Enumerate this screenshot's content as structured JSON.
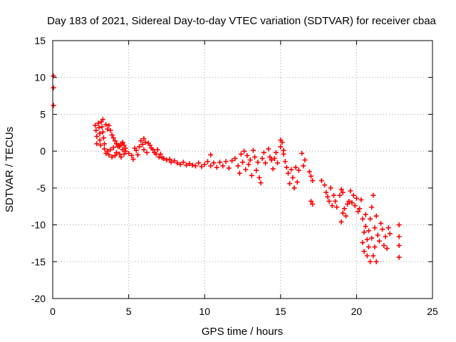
{
  "chart_data": {
    "type": "scatter",
    "title": "Day 183 of 2021, Sidereal Day-to-day VTEC variation (SDTVAR) for receiver cbaa",
    "xlabel": "GPS time / hours",
    "ylabel": "SDTVAR / TECUs",
    "xlim": [
      0,
      25
    ],
    "ylim": [
      -20,
      15
    ],
    "xticks": [
      0,
      5,
      10,
      15,
      20,
      25
    ],
    "yticks": [
      15,
      10,
      5,
      0,
      -5,
      -10,
      -15,
      -20
    ],
    "grid": true,
    "marker": "+",
    "color": "#ff0000",
    "series": [
      {
        "name": "SDTVAR",
        "points": [
          [
            0.05,
            10.2
          ],
          [
            0.05,
            8.6
          ],
          [
            0.05,
            6.2
          ],
          [
            2.8,
            3.5
          ],
          [
            2.85,
            2.8
          ],
          [
            2.9,
            2.0
          ],
          [
            2.9,
            1.0
          ],
          [
            3.0,
            3.8
          ],
          [
            3.05,
            3.2
          ],
          [
            3.1,
            2.4
          ],
          [
            3.1,
            1.5
          ],
          [
            3.15,
            0.8
          ],
          [
            3.2,
            4.0
          ],
          [
            3.25,
            3.3
          ],
          [
            3.3,
            4.3
          ],
          [
            3.3,
            2.6
          ],
          [
            3.35,
            1.8
          ],
          [
            3.4,
            1.0
          ],
          [
            3.4,
            0.3
          ],
          [
            3.5,
            3.6
          ],
          [
            3.5,
            -0.3
          ],
          [
            3.6,
            3.0
          ],
          [
            3.6,
            0.0
          ],
          [
            3.7,
            3.5
          ],
          [
            3.7,
            -0.5
          ],
          [
            3.8,
            2.8
          ],
          [
            3.8,
            0.2
          ],
          [
            3.9,
            2.2
          ],
          [
            3.9,
            -0.8
          ],
          [
            4.0,
            1.8
          ],
          [
            4.0,
            0.5
          ],
          [
            4.1,
            1.4
          ],
          [
            4.1,
            -0.6
          ],
          [
            4.2,
            1.0
          ],
          [
            4.2,
            -0.2
          ],
          [
            4.3,
            0.8
          ],
          [
            4.3,
            0.6
          ],
          [
            4.4,
            0.6
          ],
          [
            4.4,
            -0.4
          ],
          [
            4.5,
            1.0
          ],
          [
            4.5,
            -0.8
          ],
          [
            4.6,
            1.2
          ],
          [
            4.6,
            0.2
          ],
          [
            4.7,
            0.8
          ],
          [
            4.7,
            -0.4
          ],
          [
            4.8,
            0.4
          ],
          [
            4.8,
            0.0
          ],
          [
            5.0,
            -0.3
          ],
          [
            5.2,
            -0.6
          ],
          [
            5.3,
            -1.1
          ],
          [
            5.4,
            0.4
          ],
          [
            5.5,
            0.1
          ],
          [
            5.6,
            -0.5
          ],
          [
            5.7,
            0.6
          ],
          [
            5.8,
            1.4
          ],
          [
            5.9,
            0.9
          ],
          [
            6.0,
            1.7
          ],
          [
            6.0,
            0.2
          ],
          [
            6.1,
            1.2
          ],
          [
            6.2,
            -0.2
          ],
          [
            6.3,
            1.1
          ],
          [
            6.4,
            0.8
          ],
          [
            6.5,
            0.4
          ],
          [
            6.6,
            0.2
          ],
          [
            6.7,
            -0.2
          ],
          [
            6.8,
            -0.4
          ],
          [
            6.9,
            0.2
          ],
          [
            7.0,
            -0.8
          ],
          [
            7.1,
            -0.4
          ],
          [
            7.2,
            -0.9
          ],
          [
            7.3,
            -1.0
          ],
          [
            7.5,
            -1.2
          ],
          [
            7.7,
            -1.1
          ],
          [
            7.8,
            -1.5
          ],
          [
            8.0,
            -1.3
          ],
          [
            8.2,
            -1.6
          ],
          [
            8.4,
            -1.8
          ],
          [
            8.6,
            -1.5
          ],
          [
            8.8,
            -1.9
          ],
          [
            9.0,
            -1.7
          ],
          [
            9.2,
            -1.9
          ],
          [
            9.4,
            -2.0
          ],
          [
            9.6,
            -1.6
          ],
          [
            9.8,
            -2.1
          ],
          [
            10.0,
            -1.8
          ],
          [
            10.2,
            -1.4
          ],
          [
            10.4,
            -0.5
          ],
          [
            10.4,
            -2.0
          ],
          [
            10.6,
            -1.6
          ],
          [
            10.8,
            -2.2
          ],
          [
            11.0,
            -1.5
          ],
          [
            11.2,
            -2.0
          ],
          [
            11.4,
            -1.4
          ],
          [
            11.6,
            -2.3
          ],
          [
            11.8,
            -1.3
          ],
          [
            12.0,
            -1.0
          ],
          [
            12.2,
            -2.0
          ],
          [
            12.3,
            -3.0
          ],
          [
            12.4,
            -0.4
          ],
          [
            12.5,
            -1.5
          ],
          [
            12.6,
            0.0
          ],
          [
            12.7,
            -2.5
          ],
          [
            12.8,
            -0.6
          ],
          [
            12.9,
            -1.8
          ],
          [
            13.0,
            -1.2
          ],
          [
            13.1,
            -3.3
          ],
          [
            13.2,
            0.1
          ],
          [
            13.3,
            -0.8
          ],
          [
            13.4,
            -2.6
          ],
          [
            13.5,
            -1.5
          ],
          [
            13.6,
            -3.6
          ],
          [
            13.7,
            -4.3
          ],
          [
            13.8,
            -1.0
          ],
          [
            13.9,
            -0.2
          ],
          [
            14.0,
            -1.6
          ],
          [
            14.2,
            0.3
          ],
          [
            14.3,
            -0.8
          ],
          [
            14.4,
            -1.2
          ],
          [
            14.5,
            -2.4
          ],
          [
            14.6,
            -1.0
          ],
          [
            14.7,
            -0.2
          ],
          [
            14.8,
            -1.6
          ],
          [
            15.0,
            1.5
          ],
          [
            15.0,
            0.6
          ],
          [
            15.1,
            1.2
          ],
          [
            15.2,
            0.1
          ],
          [
            15.2,
            -0.4
          ],
          [
            15.3,
            -1.4
          ],
          [
            15.4,
            -2.2
          ],
          [
            15.5,
            -3.0
          ],
          [
            15.6,
            -4.4
          ],
          [
            15.7,
            -2.5
          ],
          [
            15.8,
            -3.6
          ],
          [
            15.9,
            -5.0
          ],
          [
            16.0,
            -2.2
          ],
          [
            16.1,
            -4.2
          ],
          [
            16.2,
            -2.6
          ],
          [
            16.4,
            -0.3
          ],
          [
            16.5,
            -2.0
          ],
          [
            16.6,
            -1.2
          ],
          [
            16.9,
            -2.8
          ],
          [
            17.0,
            -3.4
          ],
          [
            17.1,
            -4.0
          ],
          [
            17.0,
            -6.8
          ],
          [
            17.1,
            -7.2
          ],
          [
            17.7,
            -4.0
          ],
          [
            17.9,
            -4.6
          ],
          [
            18.0,
            -5.6
          ],
          [
            18.1,
            -6.2
          ],
          [
            18.2,
            -6.8
          ],
          [
            18.3,
            -5.0
          ],
          [
            18.4,
            -7.4
          ],
          [
            18.5,
            -6.0
          ],
          [
            18.6,
            -6.8
          ],
          [
            18.7,
            -7.6
          ],
          [
            18.9,
            -6.0
          ],
          [
            19.0,
            -9.6
          ],
          [
            19.0,
            -5.2
          ],
          [
            19.1,
            -8.4
          ],
          [
            19.1,
            -5.6
          ],
          [
            19.2,
            -7.8
          ],
          [
            19.3,
            -8.8
          ],
          [
            19.4,
            -7.2
          ],
          [
            19.5,
            -6.8
          ],
          [
            19.6,
            -5.4
          ],
          [
            19.7,
            -7.0
          ],
          [
            19.8,
            -6.0
          ],
          [
            19.9,
            -7.4
          ],
          [
            20.0,
            -6.4
          ],
          [
            20.1,
            -8.2
          ],
          [
            20.2,
            -7.8
          ],
          [
            20.3,
            -6.6
          ],
          [
            20.4,
            -9.2
          ],
          [
            20.4,
            -12.4
          ],
          [
            20.5,
            -11.0
          ],
          [
            20.5,
            -13.6
          ],
          [
            20.6,
            -8.6
          ],
          [
            20.6,
            -10.2
          ],
          [
            20.7,
            -12.0
          ],
          [
            20.7,
            -14.2
          ],
          [
            20.8,
            -10.8
          ],
          [
            20.8,
            -13.0
          ],
          [
            20.9,
            -15.0
          ],
          [
            20.9,
            -9.2
          ],
          [
            21.0,
            -11.8
          ],
          [
            21.0,
            -7.6
          ],
          [
            21.1,
            -14.2
          ],
          [
            21.1,
            -6.0
          ],
          [
            21.2,
            -13.0
          ],
          [
            21.2,
            -10.4
          ],
          [
            21.3,
            -8.8
          ],
          [
            21.3,
            -15.0
          ],
          [
            21.4,
            -11.4
          ],
          [
            21.5,
            -12.2
          ],
          [
            21.6,
            -9.8
          ],
          [
            21.7,
            -10.6
          ],
          [
            21.8,
            -12.8
          ],
          [
            21.9,
            -11.6
          ],
          [
            22.0,
            -13.2
          ],
          [
            22.1,
            -10.4
          ],
          [
            22.2,
            -11.2
          ],
          [
            22.8,
            -10.0
          ],
          [
            22.8,
            -11.6
          ],
          [
            22.8,
            -12.8
          ],
          [
            22.8,
            -14.4
          ]
        ]
      }
    ]
  }
}
